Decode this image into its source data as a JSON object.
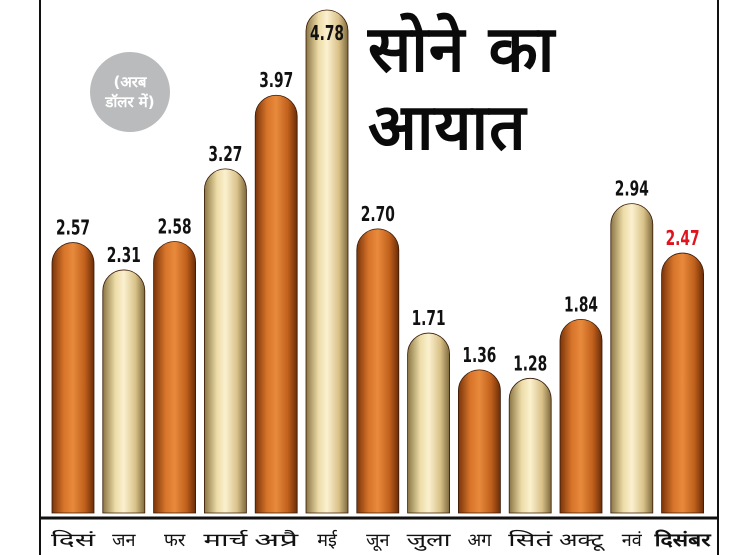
{
  "title": {
    "line1": "सोने का",
    "line2": "आयात"
  },
  "unit_note": "(अरब\nडॉलर में)",
  "colors": {
    "orange_bar": "#c8641e",
    "cream_bar": "#e8d29c",
    "value_label": "#111111",
    "highlight_value": "#e0141e",
    "frame": "#111111"
  },
  "chart_data": {
    "type": "bar",
    "title": "सोने का आयात",
    "ylabel": "(अरब डॉलर में)",
    "xlabel": "",
    "categories": [
      "दिसं",
      "जन",
      "फर",
      "मार्च",
      "अप्रै",
      "मई",
      "जून",
      "जुला",
      "अग",
      "सितं",
      "अक्टू",
      "नवं",
      "दिसंबर"
    ],
    "values": [
      2.57,
      2.31,
      2.58,
      3.27,
      3.97,
      4.78,
      2.7,
      1.71,
      1.36,
      1.28,
      1.84,
      2.94,
      2.47
    ],
    "value_labels": [
      "2.57",
      "2.31",
      "2.58",
      "3.27",
      "3.97",
      "4.78",
      "2.70",
      "1.71",
      "1.36",
      "1.28",
      "1.84",
      "2.94",
      "2.47"
    ],
    "bar_styles": [
      "orange",
      "cream",
      "orange",
      "cream",
      "orange",
      "cream",
      "orange",
      "cream",
      "orange",
      "cream",
      "orange",
      "cream",
      "orange"
    ],
    "highlighted_index": 12,
    "ylim": [
      0,
      4.78
    ],
    "grid": false,
    "legend": "none"
  }
}
